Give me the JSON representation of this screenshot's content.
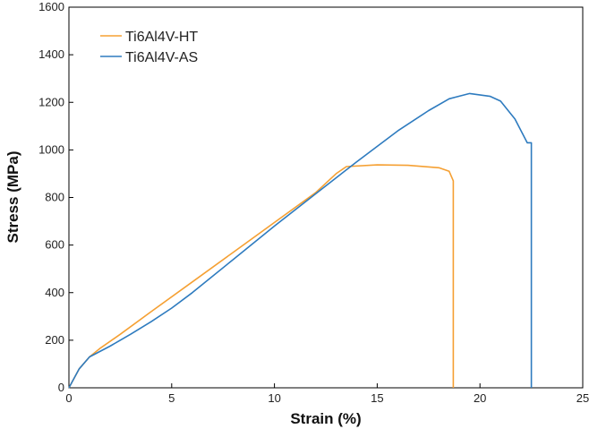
{
  "chart_data": {
    "type": "line",
    "xlabel": "Strain (%)",
    "ylabel": "Stress (MPa)",
    "xlim": [
      0,
      25
    ],
    "ylim": [
      0,
      1600
    ],
    "xticks": [
      0,
      5,
      10,
      15,
      20,
      25
    ],
    "yticks": [
      0,
      200,
      400,
      600,
      800,
      1000,
      1200,
      1400,
      1600
    ],
    "grid": false,
    "legend_position": "top-left",
    "series": [
      {
        "name": "Ti6Al4V-HT",
        "color": "#f5a033",
        "x": [
          0,
          0.5,
          1.0,
          1.5,
          2.5,
          4.0,
          6.0,
          8.0,
          10.0,
          12.0,
          13.0,
          13.5,
          15.0,
          16.5,
          18.0,
          18.5,
          18.7,
          18.7
        ],
        "y": [
          0,
          80,
          130,
          165,
          225,
          320,
          445,
          570,
          695,
          820,
          900,
          930,
          937,
          935,
          925,
          910,
          870,
          0
        ]
      },
      {
        "name": "Ti6Al4V-AS",
        "color": "#2e7bbf",
        "x": [
          0,
          0.5,
          1.0,
          2.0,
          3.0,
          4.0,
          5.0,
          6.0,
          8.0,
          10.0,
          12.0,
          14.0,
          16.0,
          17.5,
          18.5,
          19.5,
          20.5,
          21.0,
          21.7,
          22.3,
          22.5,
          22.5
        ],
        "y": [
          0,
          80,
          130,
          175,
          225,
          278,
          335,
          400,
          540,
          680,
          815,
          950,
          1080,
          1165,
          1215,
          1237,
          1225,
          1205,
          1130,
          1030,
          1030,
          0
        ]
      }
    ]
  }
}
